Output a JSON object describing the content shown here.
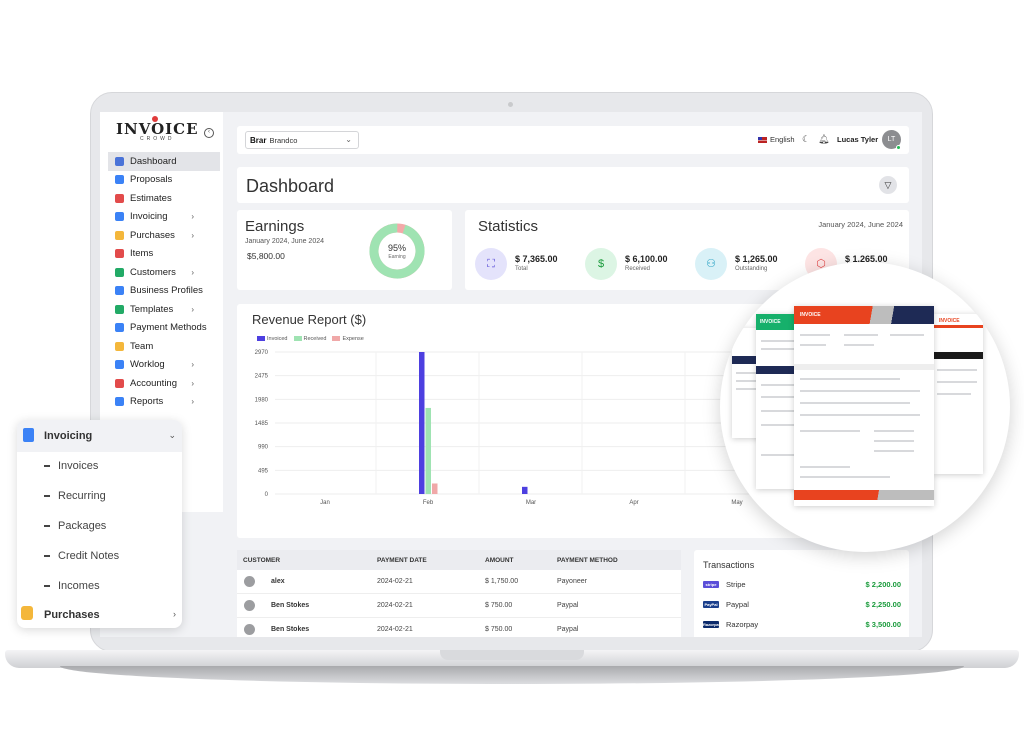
{
  "logo": {
    "main": "INVOICE",
    "sub": "CROWD"
  },
  "sidebar": {
    "items": [
      {
        "label": "Dashboard",
        "color": "#4a73d8",
        "chevron": false,
        "active": true
      },
      {
        "label": "Proposals",
        "color": "#3b82f6",
        "chevron": false
      },
      {
        "label": "Estimates",
        "color": "#e24b4b",
        "chevron": false
      },
      {
        "label": "Invoicing",
        "color": "#3b82f6",
        "chevron": true
      },
      {
        "label": "Purchases",
        "color": "#f4b73b",
        "chevron": true
      },
      {
        "label": "Items",
        "color": "#e24b4b",
        "chevron": false
      },
      {
        "label": "Customers",
        "color": "#22aa66",
        "chevron": true
      },
      {
        "label": "Business Profiles",
        "color": "#3b82f6",
        "chevron": false
      },
      {
        "label": "Templates",
        "color": "#22aa66",
        "chevron": true
      },
      {
        "label": "Payment Methods",
        "color": "#3b82f6",
        "chevron": false
      },
      {
        "label": "Team",
        "color": "#f4b73b",
        "chevron": false
      },
      {
        "label": "Worklog",
        "color": "#3b82f6",
        "chevron": true
      },
      {
        "label": "Accounting",
        "color": "#e24b4b",
        "chevron": true
      },
      {
        "label": "Reports",
        "color": "#3b82f6",
        "chevron": true
      }
    ]
  },
  "topbar": {
    "brand_logo": "Brar",
    "brand_name": "Brandco",
    "language": "English",
    "user_name": "Lucas Tyler",
    "user_initials": "LT"
  },
  "page_title": "Dashboard",
  "earnings": {
    "title": "Earnings",
    "range": "January 2024, June 2024",
    "value": "$5,800.00",
    "percent": "95%",
    "percent_label": "Earning",
    "fraction": 0.95
  },
  "statistics": {
    "title": "Statistics",
    "range": "January 2024, June 2024",
    "items": [
      {
        "value": "$ 7,365.00",
        "label": "Total",
        "bg": "#e4e3fb",
        "fg": "#5b4fd8",
        "icon": "chart-icon"
      },
      {
        "value": "$ 6,100.00",
        "label": "Received",
        "bg": "#dcf5e4",
        "fg": "#1a9b3c",
        "icon": "dollar-icon"
      },
      {
        "value": "$ 1,265.00",
        "label": "Outstanding",
        "bg": "#d9f1f7",
        "fg": "#1c9cc0",
        "icon": "user-icon"
      },
      {
        "value": "$ 1,265.00",
        "label": "",
        "bg": "#fde4e4",
        "fg": "#e24b4b",
        "icon": "box-icon"
      }
    ]
  },
  "revenue": {
    "title": "Revenue Report ($)",
    "legend": [
      {
        "name": "Invoiced",
        "color": "#4d3fe0"
      },
      {
        "name": "Received",
        "color": "#9fe3b2"
      },
      {
        "name": "Expense",
        "color": "#f0a8a8"
      }
    ]
  },
  "chart_data": {
    "type": "bar",
    "title": "Revenue Report ($)",
    "categories": [
      "Jan",
      "Feb",
      "Mar",
      "Apr",
      "May"
    ],
    "yticks": [
      0,
      495,
      990,
      1485,
      1980,
      2475,
      2970
    ],
    "ylim": [
      0,
      2970
    ],
    "series": [
      {
        "name": "Invoiced",
        "values": [
          0,
          2970,
          150,
          0,
          0
        ]
      },
      {
        "name": "Received",
        "values": [
          0,
          1800,
          0,
          0,
          0
        ]
      },
      {
        "name": "Expense",
        "values": [
          0,
          220,
          0,
          0,
          0
        ]
      }
    ],
    "grid": true,
    "legend": "top-left"
  },
  "customers": {
    "headers": [
      "CUSTOMER",
      "PAYMENT DATE",
      "AMOUNT",
      "PAYMENT METHOD"
    ],
    "rows": [
      {
        "name": "alex",
        "date": "2024-02-21",
        "amount": "$ 1,750.00",
        "method": "Payoneer"
      },
      {
        "name": "Ben Stokes",
        "date": "2024-02-21",
        "amount": "$ 750.00",
        "method": "Paypal"
      },
      {
        "name": "Ben Stokes",
        "date": "2024-02-21",
        "amount": "$ 750.00",
        "method": "Paypal"
      }
    ]
  },
  "transactions": {
    "title": "Transactions",
    "rows": [
      {
        "name": "Stripe",
        "amount": "$ 2,200.00",
        "color": "#5b4fd8",
        "logo": "stripe"
      },
      {
        "name": "Paypal",
        "amount": "$ 2,250.00",
        "color": "#1b3f8c",
        "logo": "PayPal"
      },
      {
        "name": "Razorpay",
        "amount": "$ 3,500.00",
        "color": "#0b2a6b",
        "logo": "Razorpay"
      }
    ]
  },
  "float_menu": {
    "title": "Invoicing",
    "items": [
      "Invoices",
      "Recurring",
      "Packages",
      "Credit Notes",
      "Incomes"
    ],
    "footer": "Purchases"
  },
  "magnifier": {
    "doc_labels": [
      "INVOICE",
      "INVOICE",
      "INVOICE"
    ]
  }
}
